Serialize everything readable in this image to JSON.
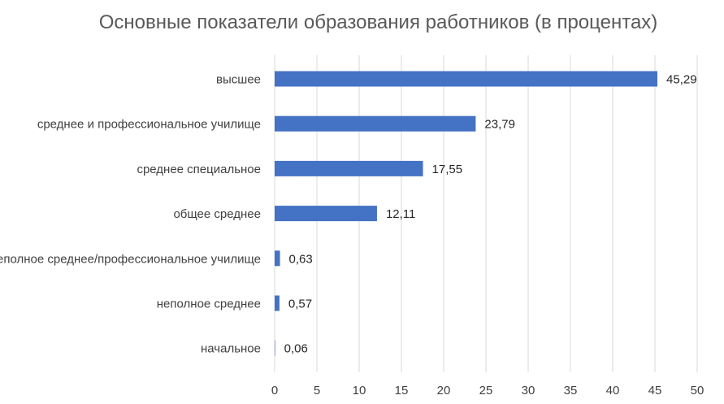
{
  "chart_data": {
    "type": "bar",
    "orientation": "horizontal",
    "title": "Основные показатели образования работников (в процентах)",
    "xlabel": "",
    "ylabel": "",
    "categories": [
      "высшее",
      "среднее и профессиональное училище",
      "среднее специальное",
      "общее среднее",
      "неполное среднее/профессиональное училище",
      "неполное среднее",
      "начальное"
    ],
    "values": [
      45.29,
      23.79,
      17.55,
      12.11,
      0.63,
      0.57,
      0.06
    ],
    "data_labels": [
      "45,29",
      "23,79",
      "17,55",
      "12,11",
      "0,63",
      "0,57",
      "0,06"
    ],
    "xlim": [
      0,
      50
    ],
    "xticks": [
      0,
      5,
      10,
      15,
      20,
      25,
      30,
      35,
      40,
      45,
      50
    ],
    "grid": "vertical",
    "legend": "none",
    "bar_color": "#4472c4"
  }
}
